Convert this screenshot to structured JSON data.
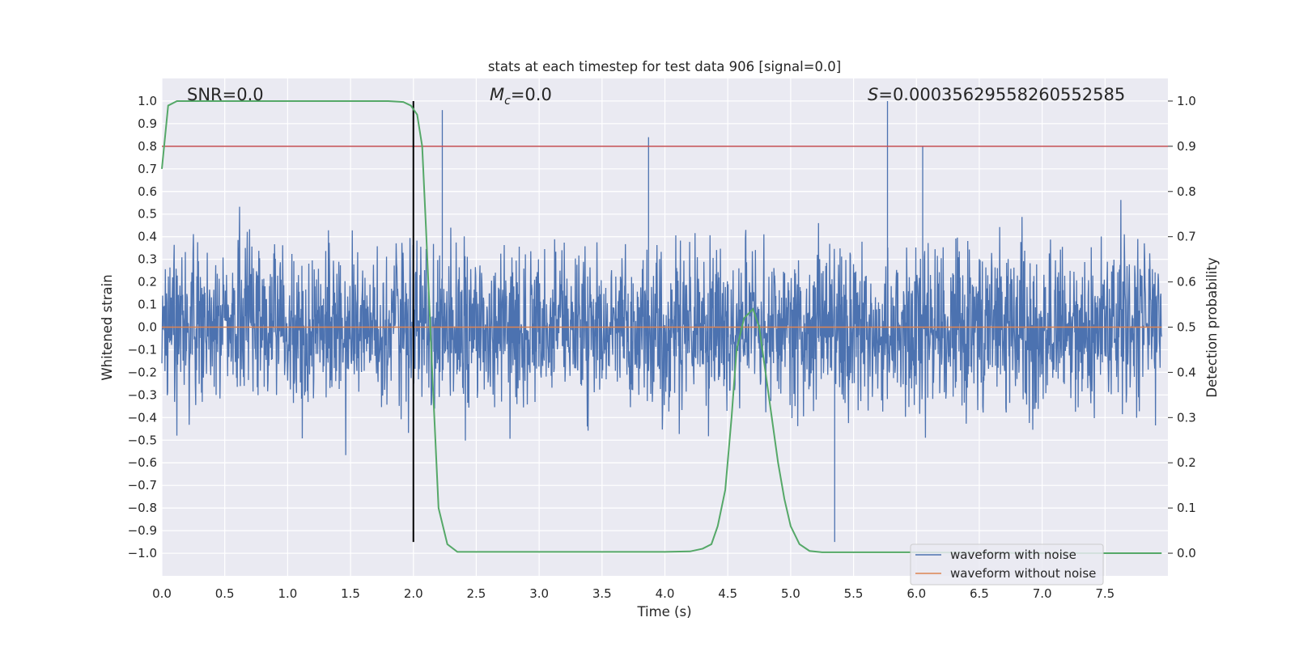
{
  "chart_data": {
    "type": "line",
    "title": "stats at each timestep for test data 906 [signal=0.0]",
    "xlabel": "Time (s)",
    "ylabel": "Whitened strain",
    "y2label": "Detection probability",
    "xlim": [
      0.0,
      8.0
    ],
    "ylim": [
      -1.1,
      1.1
    ],
    "y2lim": [
      -0.05,
      1.05
    ],
    "xticks": [
      "0.0",
      "0.5",
      "1.0",
      "1.5",
      "2.0",
      "2.5",
      "3.0",
      "3.5",
      "4.0",
      "4.5",
      "5.0",
      "5.5",
      "6.0",
      "6.5",
      "7.0",
      "7.5"
    ],
    "yticks": [
      "1.0",
      "0.9",
      "0.8",
      "0.7",
      "0.6",
      "0.5",
      "0.4",
      "0.3",
      "0.2",
      "0.1",
      "0.0",
      "-0.1",
      "-0.2",
      "-0.3",
      "-0.4",
      "-0.5",
      "-0.6",
      "-0.7",
      "-0.8",
      "-0.9",
      "-1.0"
    ],
    "y2ticks": [
      "1.0",
      "0.9",
      "0.8",
      "0.7",
      "0.6",
      "0.5",
      "0.4",
      "0.3",
      "0.2",
      "0.1",
      "0.0"
    ],
    "grid": true,
    "legend_position": "bottom-right",
    "annotations": {
      "snr": "SNR=0.0",
      "mc_symbol": "M",
      "mc_sub": "c",
      "mc_value": "=0.0",
      "s_symbol": "S",
      "s_value": "=0.00035629558260552585"
    },
    "series": [
      {
        "name": "waveform with noise",
        "color": "#4c72b0",
        "description_values": {
          "envelope_typical": 0.6,
          "peaks": [
            [
              2.23,
              0.96
            ],
            [
              3.87,
              0.84
            ],
            [
              5.77,
              1.0
            ],
            [
              5.35,
              -0.95
            ],
            [
              6.05,
              0.8
            ]
          ]
        }
      },
      {
        "name": "waveform without noise",
        "color": "#dd8452",
        "constant_value": 0.0
      },
      {
        "axis": "right",
        "color": "#55a868",
        "x": [
          0.0,
          0.05,
          0.12,
          0.3,
          1.0,
          1.8,
          1.92,
          1.98,
          2.03,
          2.07,
          2.1,
          2.15,
          2.2,
          2.27,
          2.35,
          3.0,
          4.0,
          4.2,
          4.3,
          4.37,
          4.42,
          4.48,
          4.53,
          4.57,
          4.63,
          4.7,
          4.75,
          4.8,
          4.85,
          4.9,
          4.95,
          5.0,
          5.07,
          5.15,
          5.25,
          6.0,
          7.0,
          7.95
        ],
        "values": [
          0.85,
          0.99,
          1.0,
          1.0,
          1.0,
          1.0,
          0.998,
          0.99,
          0.97,
          0.9,
          0.72,
          0.4,
          0.1,
          0.02,
          0.003,
          0.003,
          0.003,
          0.004,
          0.01,
          0.02,
          0.06,
          0.14,
          0.3,
          0.45,
          0.52,
          0.54,
          0.5,
          0.4,
          0.3,
          0.2,
          0.12,
          0.06,
          0.02,
          0.005,
          0.002,
          0.002,
          0.0,
          0.0
        ]
      }
    ],
    "horizontal_lines": [
      {
        "axis": "right",
        "value": 0.9,
        "color": "#c44e52"
      }
    ],
    "vertical_lines": [
      {
        "x": 2.0,
        "color": "#000000",
        "y_range": [
          -0.95,
          1.0
        ]
      }
    ]
  }
}
